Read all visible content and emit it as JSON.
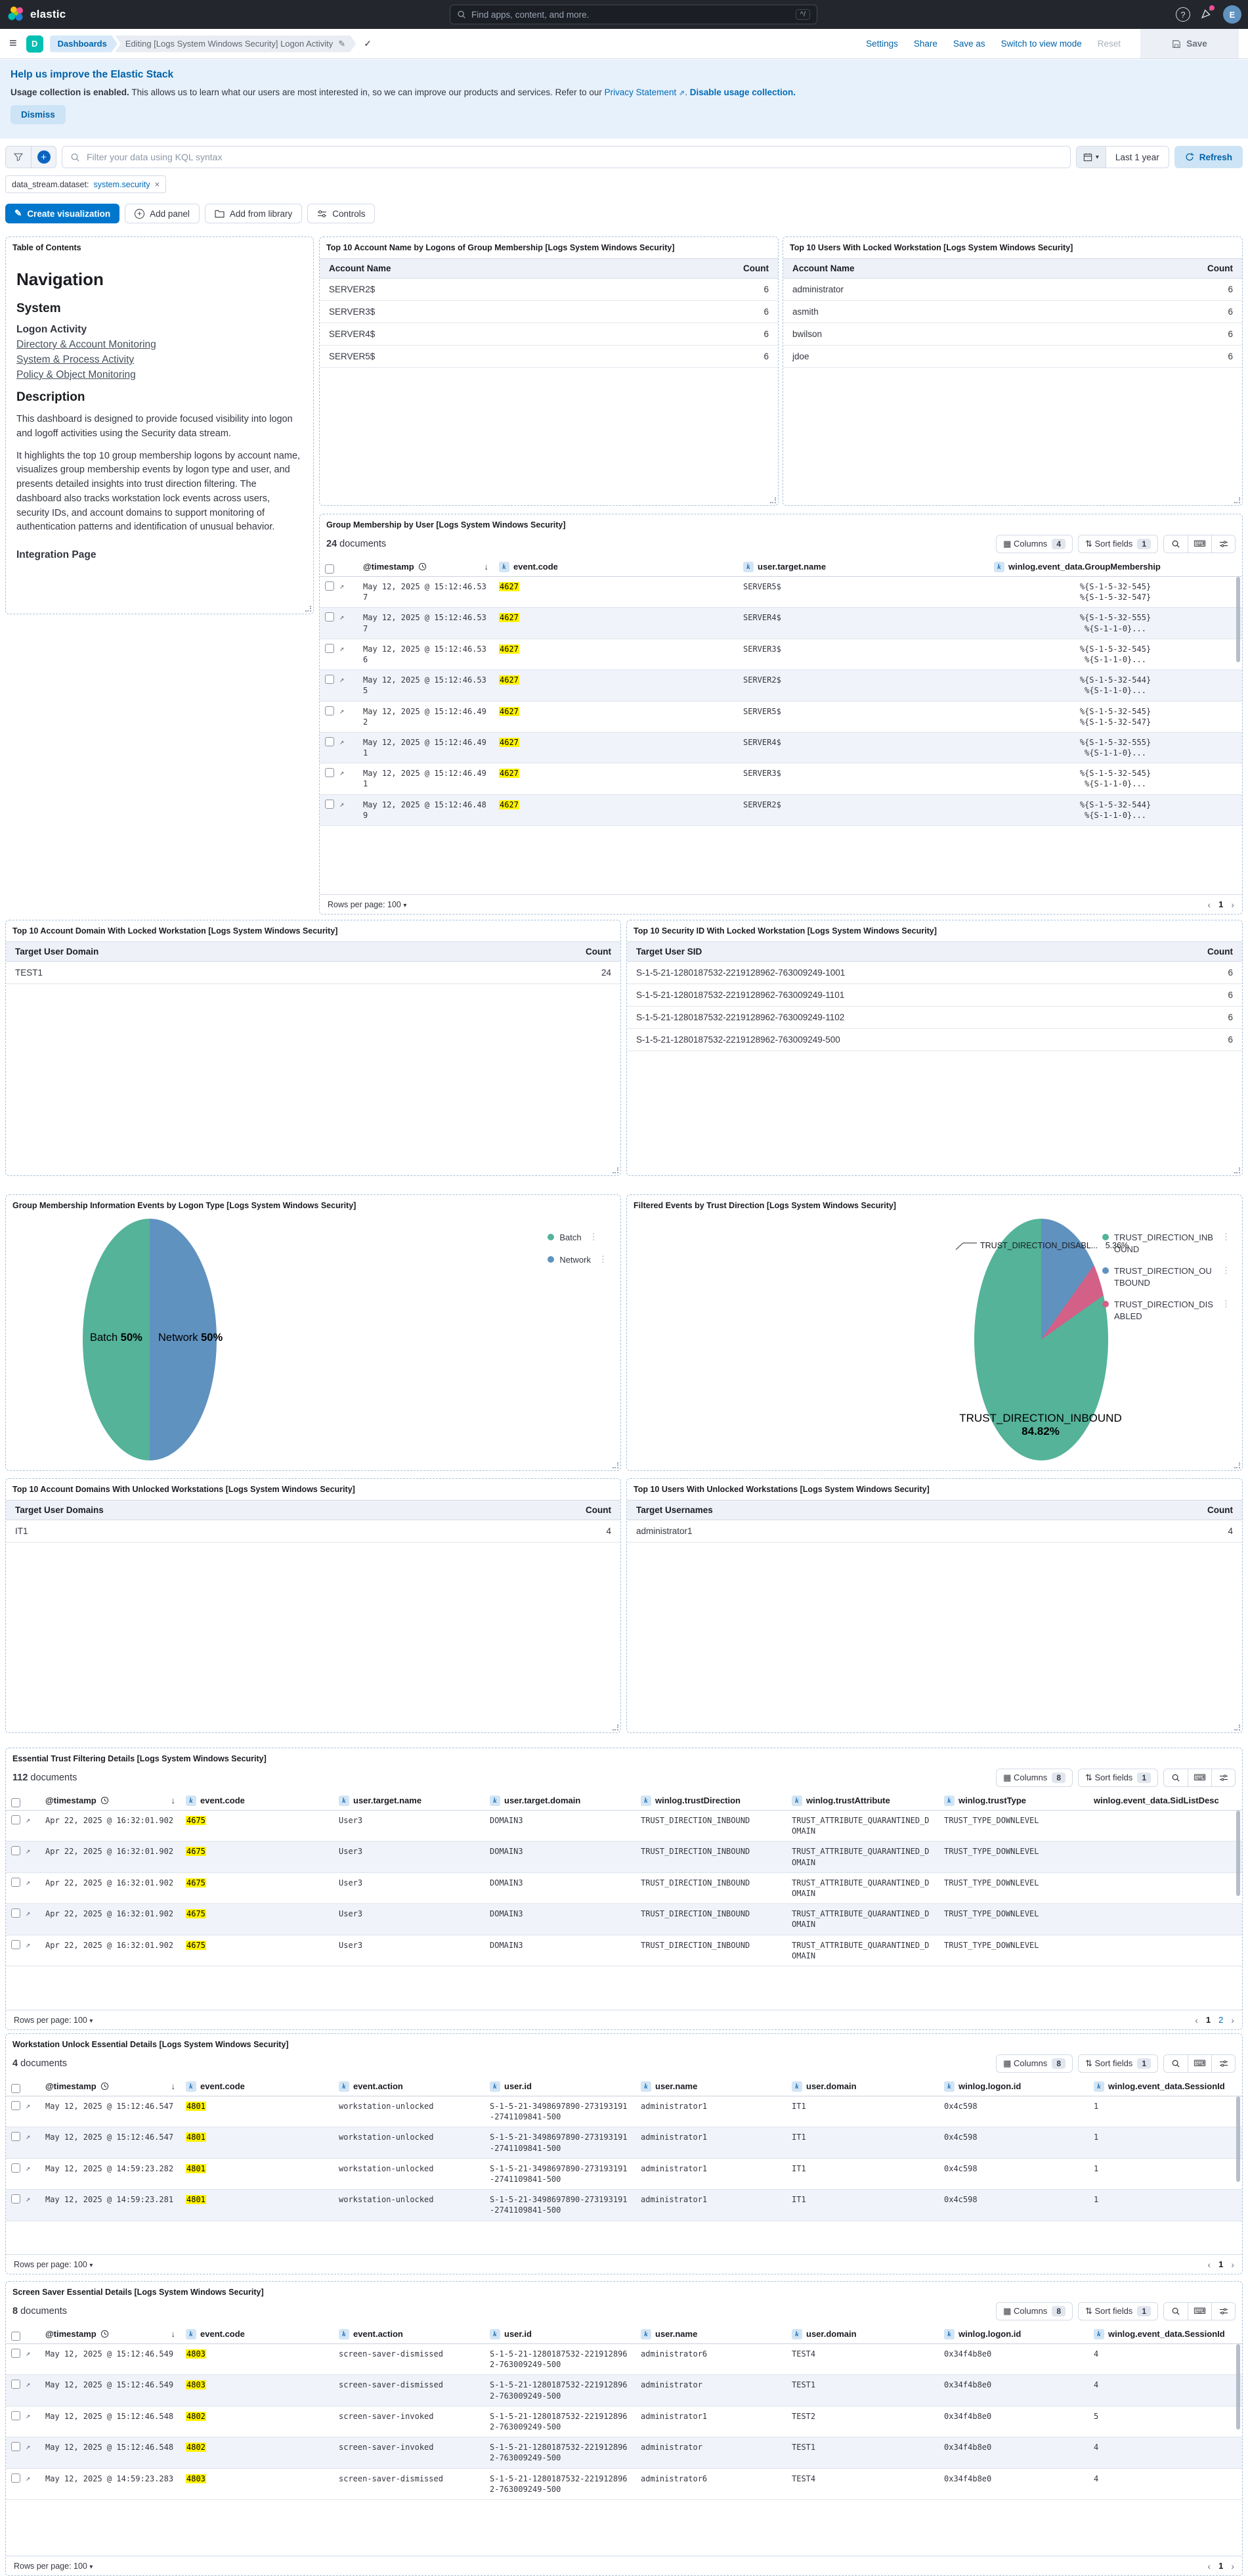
{
  "topbar": {
    "logo": "elastic",
    "search_placeholder": "Find apps, content, and more.",
    "shortcut": "^/",
    "avatar": "E"
  },
  "navbar": {
    "app_letter": "D",
    "root": "Dashboards",
    "current": "Editing [Logs System Windows Security] Logon Activity",
    "links": [
      "Settings",
      "Share",
      "Save as",
      "Switch to view mode"
    ],
    "reset": "Reset",
    "save": "Save"
  },
  "banner": {
    "title": "Help us improve the Elastic Stack",
    "lead": "Usage collection is enabled.",
    "body": " This allows us to learn what our users are most interested in, so we can improve our products and services. Refer to our ",
    "privacy_link": "Privacy Statement",
    "between": ". ",
    "disable_link": "Disable usage collection.",
    "dismiss": "Dismiss"
  },
  "querybar": {
    "placeholder": "Filter your data using KQL syntax",
    "range": "Last 1 year",
    "refresh": "Refresh"
  },
  "filter_pill": {
    "field": "data_stream.dataset:",
    "value": "system.security",
    "close": "×"
  },
  "edit_toolbar": {
    "create": "Create visualization",
    "add_panel": "Add panel",
    "add_library": "Add from library",
    "controls": "Controls"
  },
  "toc": {
    "panel_title": "Table of Contents",
    "h1": "Navigation",
    "h2": "System",
    "strong_item": "Logon Activity",
    "links": [
      "Directory & Account Monitoring",
      "System & Process Activity",
      "Policy & Object Monitoring"
    ],
    "desc_h": "Description",
    "p1": "This dashboard is designed to provide focused visibility into logon and logoff activities using the Security data stream.",
    "p2": "It highlights the top 10 group membership logons by account name, visualizes group membership events by logon type and user, and presents detailed insights into trust direction filtering. The dashboard also tracks workstation lock events across users, security IDs, and account domains to support monitoring of authentication patterns and identification of unusual behavior.",
    "footer_link": "Integration Page"
  },
  "tables": [
    {
      "title": "Top 10 Account Name by Logons of Group Membership [Logs System Windows Security]",
      "columns": [
        "Account Name",
        "Count"
      ],
      "rows": [
        [
          "SERVER2$",
          "6"
        ],
        [
          "SERVER3$",
          "6"
        ],
        [
          "SERVER4$",
          "6"
        ],
        [
          "SERVER5$",
          "6"
        ]
      ]
    },
    {
      "title": "Top 10 Users With Locked Workstation [Logs System Windows Security]",
      "columns": [
        "Account Name",
        "Count"
      ],
      "rows": [
        [
          "administrator",
          "6"
        ],
        [
          "asmith",
          "6"
        ],
        [
          "bwilson",
          "6"
        ],
        [
          "jdoe",
          "6"
        ]
      ]
    },
    {
      "title": "Top 10 Account Domain With Locked Workstation [Logs System Windows Security]",
      "columns": [
        "Target User Domain",
        "Count"
      ],
      "rows": [
        [
          "TEST1",
          "24"
        ]
      ]
    },
    {
      "title": "Top 10 Security ID With Locked Workstation [Logs System Windows Security]",
      "columns": [
        "Target User SID",
        "Count"
      ],
      "rows": [
        [
          "S-1-5-21-1280187532-2219128962-763009249-1001",
          "6"
        ],
        [
          "S-1-5-21-1280187532-2219128962-763009249-1101",
          "6"
        ],
        [
          "S-1-5-21-1280187532-2219128962-763009249-1102",
          "6"
        ],
        [
          "S-1-5-21-1280187532-2219128962-763009249-500",
          "6"
        ]
      ]
    },
    {
      "title": "Top 10 Account Domains With Unlocked Workstations [Logs System Windows Security]",
      "columns": [
        "Target User Domains",
        "Count"
      ],
      "rows": [
        [
          "IT1",
          "4"
        ]
      ]
    },
    {
      "title": "Top 10 Users With Unlocked Workstations [Logs System Windows Security]",
      "columns": [
        "Target Usernames",
        "Count"
      ],
      "rows": [
        [
          "administrator1",
          "4"
        ]
      ]
    }
  ],
  "grid_ui": {
    "columns_label": "Columns",
    "sort_label": "Sort fields",
    "documents_label": "documents",
    "rows_per_page": "Rows per page: 100",
    "prev": "‹",
    "next": "›"
  },
  "grids": [
    {
      "title": "Group Membership by User [Logs System Windows Security]",
      "docs": "24",
      "toolbar": {
        "columns": "4",
        "sort": "1"
      },
      "columns": [
        {
          "label": "@timestamp",
          "type": "time",
          "sorted": true
        },
        {
          "label": "event.code",
          "badge": "k",
          "hl": true
        },
        {
          "label": "user.target.name",
          "badge": "k"
        },
        {
          "label": "winlog.event_data.GroupMembership",
          "badge": "k",
          "center": true
        }
      ],
      "rows": [
        [
          "May 12, 2025 @ 15:12:46.537",
          "4627",
          "SERVER5$",
          "%{S-1-5-32-545}\n%{S-1-5-32-547}"
        ],
        [
          "May 12, 2025 @ 15:12:46.537",
          "4627",
          "SERVER4$",
          "%{S-1-5-32-555}\n%{S-1-1-0}..."
        ],
        [
          "May 12, 2025 @ 15:12:46.536",
          "4627",
          "SERVER3$",
          "%{S-1-5-32-545}\n%{S-1-1-0}..."
        ],
        [
          "May 12, 2025 @ 15:12:46.535",
          "4627",
          "SERVER2$",
          "%{S-1-5-32-544}\n%{S-1-1-0}..."
        ],
        [
          "May 12, 2025 @ 15:12:46.492",
          "4627",
          "SERVER5$",
          "%{S-1-5-32-545}\n%{S-1-5-32-547}"
        ],
        [
          "May 12, 2025 @ 15:12:46.491",
          "4627",
          "SERVER4$",
          "%{S-1-5-32-555}\n%{S-1-1-0}..."
        ],
        [
          "May 12, 2025 @ 15:12:46.491",
          "4627",
          "SERVER3$",
          "%{S-1-5-32-545}\n%{S-1-1-0}..."
        ],
        [
          "May 12, 2025 @ 15:12:46.489",
          "4627",
          "SERVER2$",
          "%{S-1-5-32-544}\n%{S-1-1-0}..."
        ]
      ],
      "pages": [
        "1"
      ]
    },
    {
      "title": "Essential Trust Filtering Details [Logs System Windows Security]",
      "docs": "112",
      "toolbar": {
        "columns": "8",
        "sort": "1"
      },
      "columns": [
        {
          "label": "@timestamp",
          "type": "time",
          "sorted": true
        },
        {
          "label": "event.code",
          "badge": "k",
          "hl": true
        },
        {
          "label": "user.target.name",
          "badge": "k"
        },
        {
          "label": "user.target.domain",
          "badge": "k"
        },
        {
          "label": "winlog.trustDirection",
          "badge": "k"
        },
        {
          "label": "winlog.trustAttribute",
          "badge": "k"
        },
        {
          "label": "winlog.trustType",
          "badge": "k"
        },
        {
          "label": "winlog.event_data.SidListDesc"
        }
      ],
      "rows": [
        [
          "Apr 22, 2025 @ 16:32:01.902",
          "4675",
          "User3",
          "DOMAIN3",
          "TRUST_DIRECTION_INBOUND",
          "TRUST_ATTRIBUTE_QUARANTINED_DOMAIN",
          "TRUST_TYPE_DOWNLEVEL",
          ""
        ],
        [
          "Apr 22, 2025 @ 16:32:01.902",
          "4675",
          "User3",
          "DOMAIN3",
          "TRUST_DIRECTION_INBOUND",
          "TRUST_ATTRIBUTE_QUARANTINED_DOMAIN",
          "TRUST_TYPE_DOWNLEVEL",
          ""
        ],
        [
          "Apr 22, 2025 @ 16:32:01.902",
          "4675",
          "User3",
          "DOMAIN3",
          "TRUST_DIRECTION_INBOUND",
          "TRUST_ATTRIBUTE_QUARANTINED_DOMAIN",
          "TRUST_TYPE_DOWNLEVEL",
          ""
        ],
        [
          "Apr 22, 2025 @ 16:32:01.902",
          "4675",
          "User3",
          "DOMAIN3",
          "TRUST_DIRECTION_INBOUND",
          "TRUST_ATTRIBUTE_QUARANTINED_DOMAIN",
          "TRUST_TYPE_DOWNLEVEL",
          ""
        ],
        [
          "Apr 22, 2025 @ 16:32:01.902",
          "4675",
          "User3",
          "DOMAIN3",
          "TRUST_DIRECTION_INBOUND",
          "TRUST_ATTRIBUTE_QUARANTINED_DOMAIN",
          "TRUST_TYPE_DOWNLEVEL",
          ""
        ]
      ],
      "pages": [
        "1",
        "2"
      ]
    },
    {
      "title": "Workstation Unlock Essential Details [Logs System Windows Security]",
      "docs": "4",
      "toolbar": {
        "columns": "8",
        "sort": "1"
      },
      "columns": [
        {
          "label": "@timestamp",
          "type": "time",
          "sorted": true
        },
        {
          "label": "event.code",
          "badge": "k",
          "hl": true
        },
        {
          "label": "event.action",
          "badge": "k"
        },
        {
          "label": "user.id",
          "badge": "k"
        },
        {
          "label": "user.name",
          "badge": "k"
        },
        {
          "label": "user.domain",
          "badge": "k"
        },
        {
          "label": "winlog.logon.id",
          "badge": "k"
        },
        {
          "label": "winlog.event_data.SessionId",
          "badge": "k"
        }
      ],
      "rows": [
        [
          "May 12, 2025 @ 15:12:46.547",
          "4801",
          "workstation-unlocked",
          "S-1-5-21-3498697890-273193191-2741109841-500",
          "administrator1",
          "IT1",
          "0x4c598",
          "1"
        ],
        [
          "May 12, 2025 @ 15:12:46.547",
          "4801",
          "workstation-unlocked",
          "S-1-5-21-3498697890-273193191-2741109841-500",
          "administrator1",
          "IT1",
          "0x4c598",
          "1"
        ],
        [
          "May 12, 2025 @ 14:59:23.282",
          "4801",
          "workstation-unlocked",
          "S-1-5-21-3498697890-273193191-2741109841-500",
          "administrator1",
          "IT1",
          "0x4c598",
          "1"
        ],
        [
          "May 12, 2025 @ 14:59:23.281",
          "4801",
          "workstation-unlocked",
          "S-1-5-21-3498697890-273193191-2741109841-500",
          "administrator1",
          "IT1",
          "0x4c598",
          "1"
        ]
      ],
      "pages": [
        "1"
      ]
    },
    {
      "title": "Screen Saver Essential Details [Logs System Windows Security]",
      "docs": "8",
      "toolbar": {
        "columns": "8",
        "sort": "1"
      },
      "columns": [
        {
          "label": "@timestamp",
          "type": "time",
          "sorted": true
        },
        {
          "label": "event.code",
          "badge": "k",
          "hl": true
        },
        {
          "label": "event.action",
          "badge": "k"
        },
        {
          "label": "user.id",
          "badge": "k"
        },
        {
          "label": "user.name",
          "badge": "k"
        },
        {
          "label": "user.domain",
          "badge": "k"
        },
        {
          "label": "winlog.logon.id",
          "badge": "k"
        },
        {
          "label": "winlog.event_data.SessionId",
          "badge": "k"
        }
      ],
      "rows": [
        [
          "May 12, 2025 @ 15:12:46.549",
          "4803",
          "screen-saver-dismissed",
          "S-1-5-21-1280187532-2219128962-763009249-500",
          "administrator6",
          "TEST4",
          "0x34f4b8e0",
          "4"
        ],
        [
          "May 12, 2025 @ 15:12:46.549",
          "4803",
          "screen-saver-dismissed",
          "S-1-5-21-1280187532-2219128962-763009249-500",
          "administrator",
          "TEST1",
          "0x34f4b8e0",
          "4"
        ],
        [
          "May 12, 2025 @ 15:12:46.548",
          "4802",
          "screen-saver-invoked",
          "S-1-5-21-1280187532-2219128962-763009249-500",
          "administrator1",
          "TEST2",
          "0x34f4b8e0",
          "5"
        ],
        [
          "May 12, 2025 @ 15:12:46.548",
          "4802",
          "screen-saver-invoked",
          "S-1-5-21-1280187532-2219128962-763009249-500",
          "administrator",
          "TEST1",
          "0x34f4b8e0",
          "4"
        ],
        [
          "May 12, 2025 @ 14:59:23.283",
          "4803",
          "screen-saver-dismissed",
          "S-1-5-21-1280187532-2219128962-763009249-500",
          "administrator6",
          "TEST4",
          "0x34f4b8e0",
          "4"
        ]
      ],
      "pages": [
        "1"
      ]
    }
  ],
  "chart_data": [
    {
      "type": "pie",
      "title": "Group Membership Information Events by Logon Type [Logs System Windows Security]",
      "labels": [
        "Batch",
        "Network"
      ],
      "values": [
        50,
        50
      ],
      "colors": [
        "#54b399",
        "#6092c0"
      ],
      "legend": [
        "Batch",
        "Network"
      ],
      "legend_position": "right",
      "start_angle": 180,
      "order": [
        0,
        1
      ],
      "inside": [
        {
          "name": "Batch",
          "pct": "50%"
        },
        {
          "name": "Network",
          "pct": "50%"
        }
      ]
    },
    {
      "type": "pie",
      "title": "Filtered Events by Trust Direction [Logs System Windows Security]",
      "labels": [
        "TRUST_DIRECTION_INBOUND",
        "TRUST_DIRECTION_OUTBOUND",
        "TRUST_DIRECTION_DISABLED"
      ],
      "values": [
        84.82,
        9.82,
        5.36
      ],
      "colors": [
        "#54b399",
        "#6092c0",
        "#d36086"
      ],
      "legend": [
        "TRUST_DIRECTION_INBOUND",
        "TRUST_DIRECTION_OUTBOUND",
        "TRUST_DIRECTION_DISABLED"
      ],
      "legend_position": "right",
      "start_angle": 0,
      "order": [
        1,
        2,
        0
      ],
      "inside": [
        {
          "name": "TRUST_DIRECTION_INBOUND",
          "pct": "84.82%"
        }
      ],
      "callout": {
        "name": "TRUST_DIRECTION_DISABL...",
        "pct": "5.36%"
      }
    }
  ]
}
